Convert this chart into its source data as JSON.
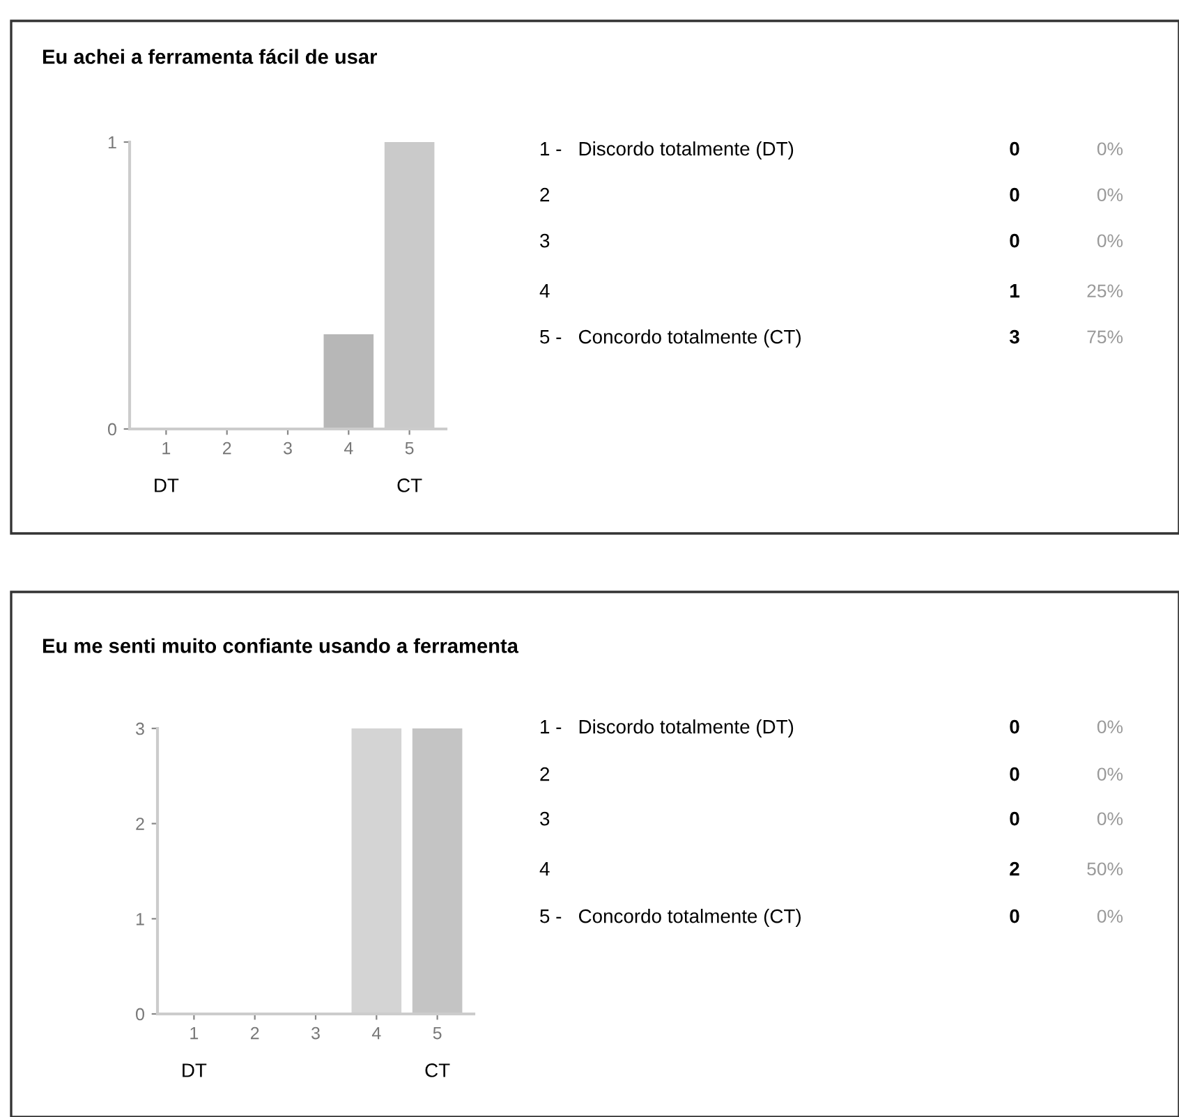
{
  "chart_data": [
    {
      "type": "bar",
      "title": "Eu achei a ferramenta fácil de usar",
      "categories": [
        "1",
        "2",
        "3",
        "4",
        "5"
      ],
      "values": [
        0,
        0,
        0,
        0.33,
        1
      ],
      "colors": [
        "#b7b7b7",
        "#b7b7b7",
        "#b7b7b7",
        "#b7b7b7",
        "#cacaca"
      ],
      "ylim": [
        0,
        1
      ],
      "yticks": [
        0,
        1
      ],
      "annotations": [
        "DT",
        "CT",
        "1 -   Discordo totalmente (DT)",
        "0",
        "0%",
        "2",
        "0",
        "0%",
        "3",
        "0",
        "0%",
        "4",
        "1",
        "25%",
        "5 -   Concordo totalmente (CT)",
        "3",
        "75%"
      ]
    },
    {
      "type": "bar",
      "title": "Eu me senti muito confiante usando a ferramenta",
      "categories": [
        "1",
        "2",
        "3",
        "4",
        "5"
      ],
      "values": [
        0,
        0,
        0,
        3,
        3
      ],
      "colors": [
        "#d4d4d4",
        "#d4d4d4",
        "#d4d4d4",
        "#d4d4d4",
        "#c4c4c4"
      ],
      "ylim": [
        0,
        3
      ],
      "yticks": [
        0,
        1,
        2,
        3
      ],
      "annotations": [
        "DT",
        "CT",
        "1 -   Discordo totalmente (DT)",
        "0",
        "0%",
        "2",
        "0",
        "0%",
        "3",
        "0",
        "0%",
        "4",
        "2",
        "50%",
        "5 -   Concordo totalmente (CT)",
        "0",
        "0%"
      ]
    }
  ]
}
